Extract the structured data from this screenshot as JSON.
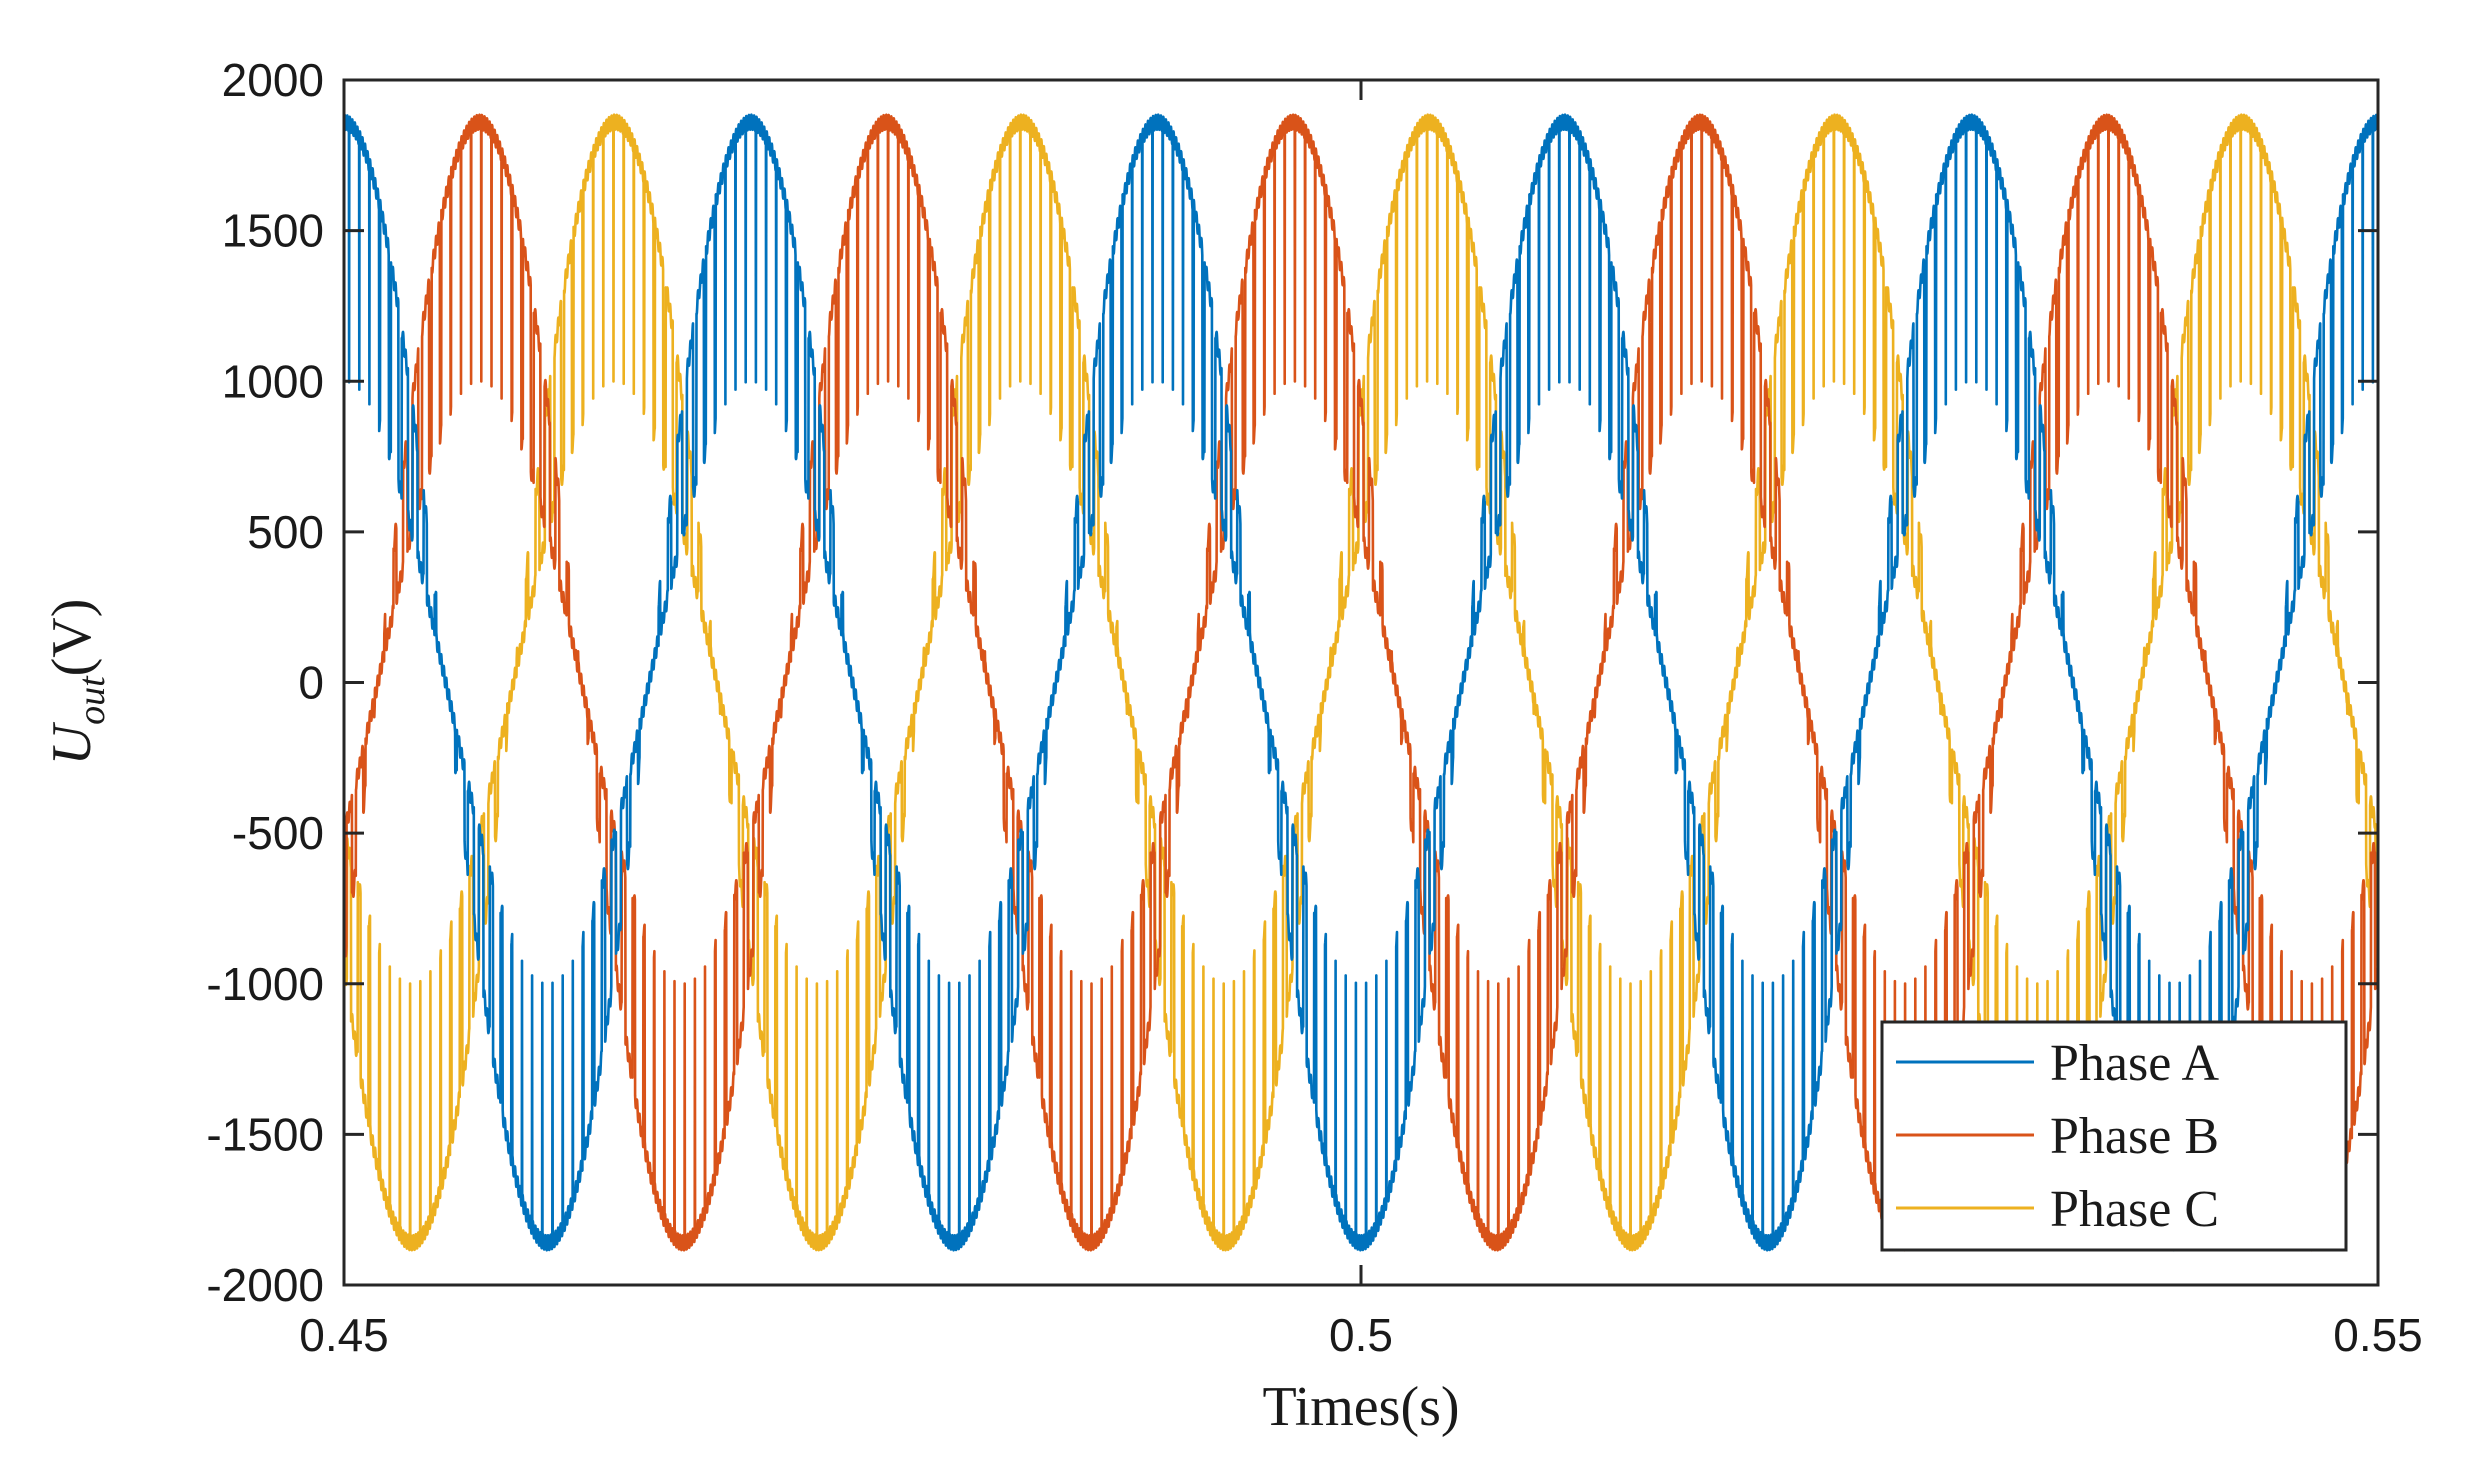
{
  "chart_data": {
    "type": "line",
    "title": "",
    "xlabel": "Times(s)",
    "ylabel_main": "U",
    "ylabel_sub": "out",
    "ylabel_unit": "(V)",
    "xlim": [
      0.45,
      0.55
    ],
    "ylim": [
      -2000,
      2000
    ],
    "xticks": [
      0.45,
      0.5,
      0.55
    ],
    "xtick_labels": [
      "0.45",
      "0.5",
      "0.55"
    ],
    "yticks": [
      -2000,
      -1500,
      -1000,
      -500,
      0,
      500,
      1000,
      1500,
      2000
    ],
    "ytick_labels": [
      "-2000",
      "-1500",
      "-1000",
      "-500",
      "0",
      "500",
      "1000",
      "1500",
      "2000"
    ],
    "grid": false,
    "legend_position": "bottom-right",
    "fundamental_frequency_hz": 50,
    "carrier_frequency_hz": 2000,
    "amplitude_pwm_peak_v": 1860,
    "amplitude_level_v": 1000,
    "series": [
      {
        "name": "Phase A",
        "color": "#0072BD",
        "phase_deg": -90
      },
      {
        "name": "Phase B",
        "color": "#D95319",
        "phase_deg": 150
      },
      {
        "name": "Phase C",
        "color": "#EDB120",
        "phase_deg": 30
      }
    ]
  }
}
